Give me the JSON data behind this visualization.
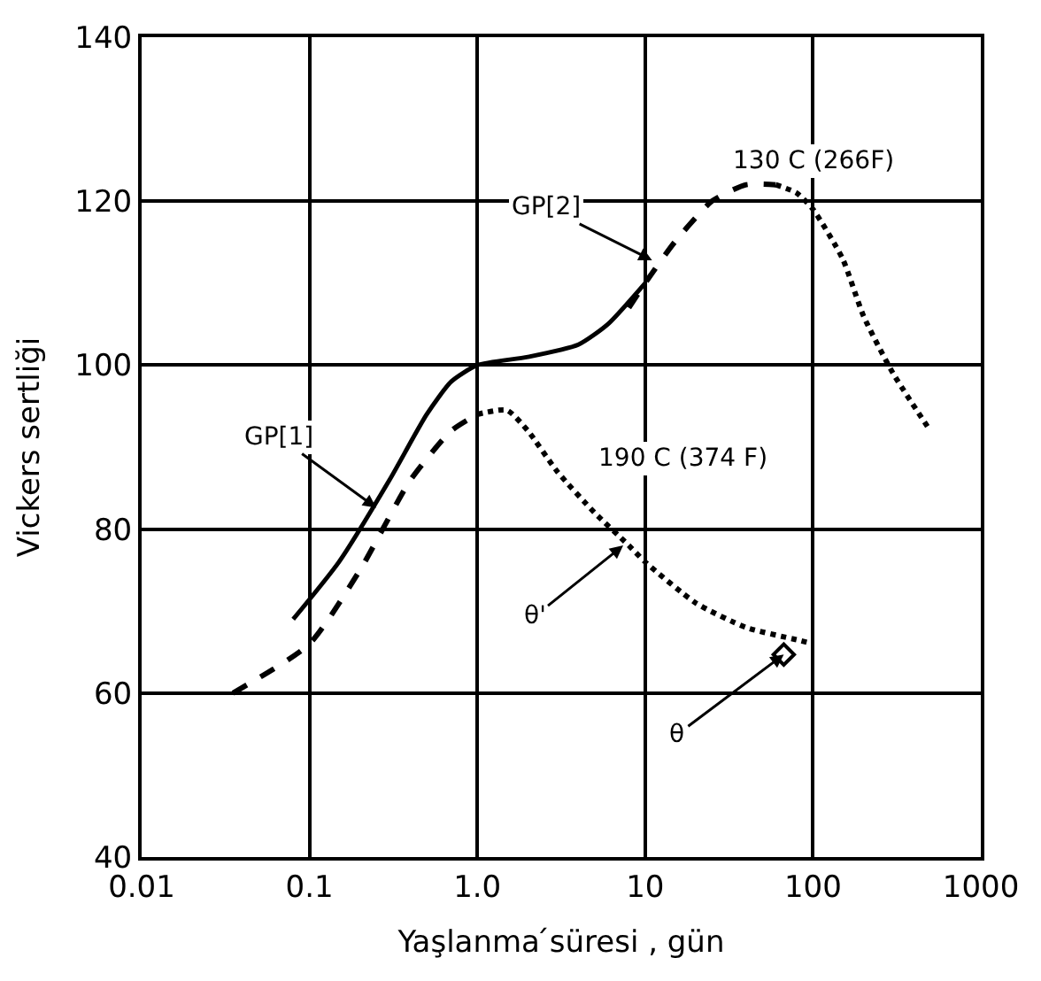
{
  "chart_data": {
    "type": "line",
    "xlabel": "Yaşlanma ́süresi , gün",
    "ylabel": "Vickers sertliği",
    "log": "x",
    "xlim": [
      0.01,
      1000
    ],
    "ylim": [
      40,
      140
    ],
    "xticks": [
      0.01,
      0.1,
      {
        "value": 1,
        "label": "1.0"
      },
      10,
      100,
      1000
    ],
    "yticks": [
      40,
      60,
      80,
      100,
      120,
      140
    ],
    "grid": true,
    "marker": "none",
    "series": [
      {
        "color": "#000000",
        "line_style": "solid",
        "x": [
          0.08,
          0.15,
          0.3,
          0.5,
          0.7,
          1.0,
          2,
          4,
          6,
          10
        ],
        "values": [
          69,
          76,
          86,
          94,
          98,
          100,
          101,
          102.5,
          105,
          110
        ]
      },
      {
        "color": "#000000",
        "line_style": "dashed",
        "x": [
          0.035,
          0.1,
          0.2,
          0.4,
          0.7,
          1.0
        ],
        "values": [
          60,
          66,
          75,
          86,
          92,
          94
        ]
      },
      {
        "color": "#000000",
        "line_style": "dashed",
        "x": [
          8,
          10,
          15,
          25,
          40,
          60
        ],
        "values": [
          107,
          110,
          115,
          120,
          122,
          122
        ]
      },
      {
        "color": "#000000",
        "line_style": "dotted",
        "x": [
          1.0,
          1.5,
          2,
          3,
          5,
          8,
          10,
          20,
          40,
          80,
          100
        ],
        "values": [
          94,
          94.5,
          92,
          87,
          82,
          78,
          76,
          71,
          68,
          66.5,
          66
        ]
      },
      {
        "color": "#000000",
        "line_style": "dotted",
        "x": [
          60,
          80,
          100,
          150,
          200,
          300,
          500
        ],
        "values": [
          122,
          121,
          119,
          113,
          106,
          99,
          92
        ]
      },
      {
        "type": "scatter",
        "color": "#000000",
        "marker": "diamond",
        "x": [
          67
        ],
        "values": [
          64.7
        ]
      }
    ],
    "annotations": [
      {
        "text": "GP[1]",
        "x": 0.25,
        "y": 82.6
      },
      {
        "text": "GP[2]",
        "x": 11,
        "y": 112.8
      },
      {
        "text": "θ'",
        "x": 7.4,
        "y": 78
      },
      {
        "text": "θ",
        "x": 67,
        "y": 64.7
      },
      "130 C (266F)",
      "190 C (374 F)"
    ]
  }
}
